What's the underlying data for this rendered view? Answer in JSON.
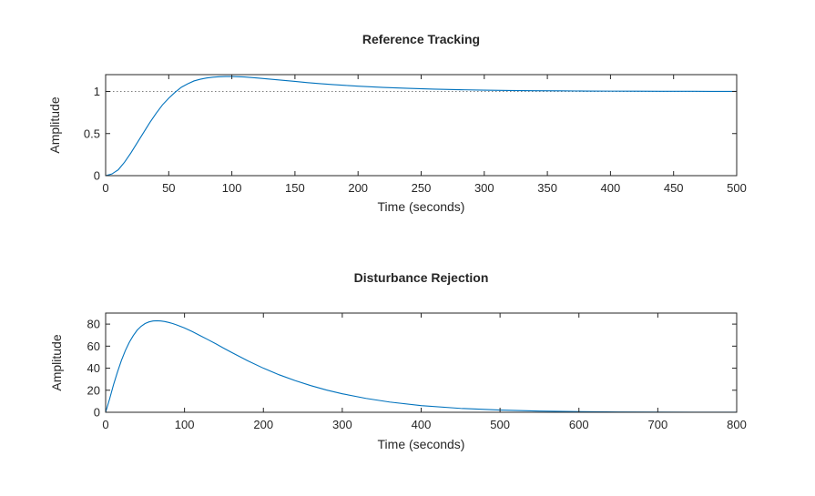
{
  "chart_data": [
    {
      "type": "line",
      "title": "Reference Tracking",
      "xlabel": "Time (seconds)",
      "ylabel": "Amplitude",
      "xlim": [
        0,
        500
      ],
      "ylim": [
        0,
        1.2
      ],
      "xticks": [
        0,
        50,
        100,
        150,
        200,
        250,
        300,
        350,
        400,
        450,
        500
      ],
      "yticks": [
        0,
        0.5,
        1
      ],
      "ytick_labels": [
        "0",
        "0.5",
        "1"
      ],
      "reference_line": 1,
      "grid": false,
      "series": [
        {
          "color": "#0072bd",
          "x": [
            0,
            5,
            10,
            15,
            20,
            25,
            30,
            35,
            40,
            45,
            50,
            55,
            60,
            65,
            70,
            75,
            80,
            85,
            90,
            95,
            100,
            110,
            120,
            130,
            140,
            150,
            160,
            170,
            180,
            190,
            200,
            220,
            240,
            260,
            280,
            300,
            320,
            340,
            360,
            380,
            400,
            420,
            440,
            460,
            480,
            500
          ],
          "y": [
            0,
            0.02,
            0.07,
            0.16,
            0.27,
            0.39,
            0.51,
            0.63,
            0.74,
            0.84,
            0.92,
            0.99,
            1.05,
            1.09,
            1.125,
            1.145,
            1.16,
            1.17,
            1.175,
            1.178,
            1.178,
            1.172,
            1.16,
            1.147,
            1.133,
            1.12,
            1.105,
            1.093,
            1.082,
            1.072,
            1.063,
            1.048,
            1.037,
            1.028,
            1.021,
            1.016,
            1.012,
            1.009,
            1.007,
            1.005,
            1.004,
            1.003,
            1.002,
            1.002,
            1.001,
            1.001
          ]
        }
      ]
    },
    {
      "type": "line",
      "title": "Disturbance Rejection",
      "xlabel": "Time (seconds)",
      "ylabel": "Amplitude",
      "xlim": [
        0,
        800
      ],
      "ylim": [
        0,
        90
      ],
      "xticks": [
        0,
        100,
        200,
        300,
        400,
        500,
        600,
        700,
        800
      ],
      "yticks": [
        0,
        20,
        40,
        60,
        80
      ],
      "ytick_labels": [
        "0",
        "20",
        "40",
        "60",
        "80"
      ],
      "reference_line": 0,
      "grid": false,
      "series": [
        {
          "color": "#0072bd",
          "x": [
            0,
            5,
            10,
            15,
            20,
            25,
            30,
            35,
            40,
            45,
            50,
            55,
            60,
            65,
            70,
            75,
            80,
            85,
            90,
            100,
            110,
            120,
            130,
            140,
            150,
            160,
            180,
            200,
            220,
            240,
            260,
            280,
            300,
            330,
            360,
            400,
            450,
            500,
            550,
            600,
            650,
            700,
            750,
            800
          ],
          "y": [
            0,
            12,
            25,
            36.5,
            47,
            56,
            63.5,
            69.5,
            74.5,
            78,
            80.5,
            82,
            82.8,
            83,
            82.8,
            82.3,
            81.5,
            80.5,
            79.3,
            76.5,
            73.2,
            69.5,
            65.8,
            62,
            58,
            54.2,
            46.8,
            40,
            34,
            28.8,
            24.2,
            20.2,
            16.8,
            12.6,
            9.3,
            6.0,
            3.5,
            2.0,
            1.1,
            0.6,
            0.3,
            0.15,
            0.08,
            0.04
          ]
        }
      ]
    }
  ]
}
